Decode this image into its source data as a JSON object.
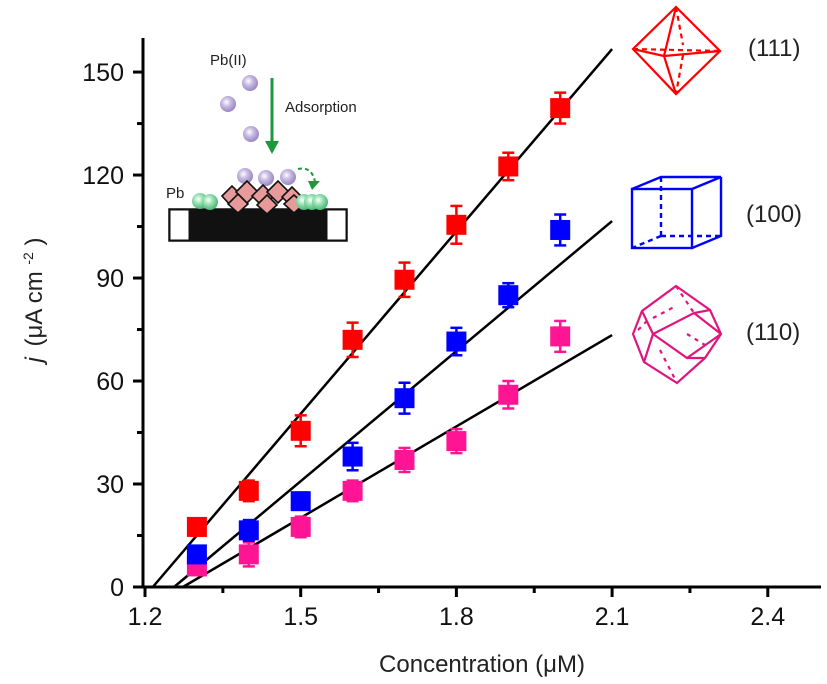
{
  "chart_data": {
    "type": "scatter",
    "title": "",
    "xlabel": "Concentration (μM)",
    "ylabel_italic": "j",
    "ylabel_unit": "(μA cm",
    "ylabel_sup": "-2",
    "ylabel_close": ")",
    "xlim": [
      1.2,
      2.5
    ],
    "ylim": [
      0,
      160
    ],
    "xticks": [
      1.2,
      1.5,
      1.8,
      2.1,
      2.4
    ],
    "xtick_labels": [
      "1.2",
      "1.5",
      "1.8",
      "2.1",
      "2.4"
    ],
    "xminor": [
      1.35,
      1.65,
      1.95,
      2.25
    ],
    "yticks": [
      0,
      30,
      60,
      90,
      120,
      150
    ],
    "ytick_labels": [
      "0",
      "30",
      "60",
      "90",
      "120",
      "150"
    ],
    "yminor": [
      15,
      45,
      75,
      105,
      135
    ],
    "grid": false,
    "x": [
      1.3,
      1.4,
      1.5,
      1.6,
      1.7,
      1.8,
      1.9,
      2.0
    ],
    "series": [
      {
        "name": "(111)",
        "color": "#ff0000",
        "shape": "octahedron",
        "values": [
          17.5,
          28,
          45.5,
          72,
          89.5,
          105.5,
          122.5,
          139.5
        ],
        "errors": [
          2.5,
          3,
          4.5,
          5,
          5,
          5.5,
          4,
          4.5
        ],
        "fit": {
          "x": [
            1.215,
            2.1
          ],
          "y": [
            0,
            156.7
          ]
        }
      },
      {
        "name": "(100)",
        "color": "#0000ff",
        "shape": "cube",
        "values": [
          9.5,
          16.5,
          25,
          38,
          55,
          71.5,
          85,
          104
        ],
        "errors": [
          2.5,
          3,
          2.5,
          4,
          4.5,
          4,
          3.5,
          4.5
        ],
        "fit": {
          "x": [
            1.256,
            2.1
          ],
          "y": [
            0,
            106.6
          ]
        }
      },
      {
        "name": "(110)",
        "color": "#ff1493",
        "shape": "rhombic-dodecahedron",
        "values": [
          6,
          9.5,
          17.5,
          28,
          37,
          42.5,
          56,
          73
        ],
        "errors": [
          2.5,
          3.5,
          3,
          3,
          3.5,
          3.5,
          4,
          4.5
        ],
        "fit": {
          "x": [
            1.273,
            2.1
          ],
          "y": [
            0,
            73.4
          ]
        }
      }
    ],
    "inset": {
      "ion_label": "Pb(II)",
      "process_label": "Adsorption",
      "deposit_label": "Pb",
      "arrow_color": "#1a9a3c",
      "ion_color": "#b7a6d6",
      "deposit_color": "#7ed7a0",
      "crystal_color": "#e89a9a"
    }
  }
}
